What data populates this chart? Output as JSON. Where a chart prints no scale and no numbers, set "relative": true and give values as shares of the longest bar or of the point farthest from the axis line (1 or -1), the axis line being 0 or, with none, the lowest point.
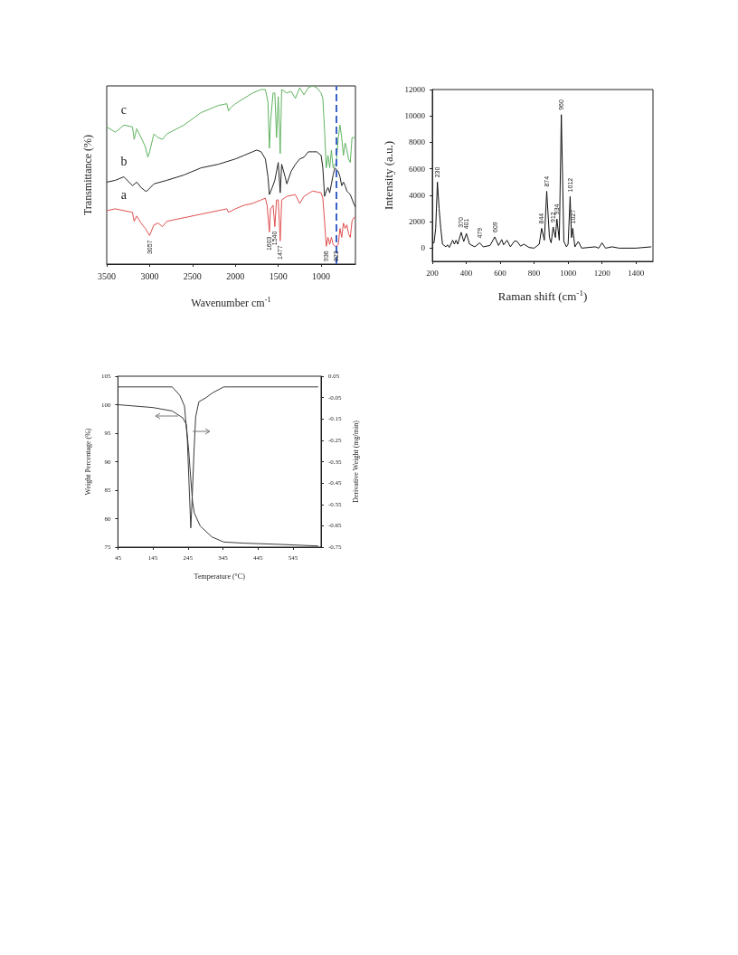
{
  "chart_data": [
    {
      "type": "line",
      "relative": true,
      "xlabel": "Wavenumber cm$^{-1}$",
      "ylabel": "Transmittance (%)",
      "xlim": [
        3500,
        600
      ],
      "xticks": [
        3500,
        3000,
        2500,
        2000,
        1500,
        1000
      ],
      "marker": "none",
      "series": [
        {
          "name": "c",
          "color": "#5fb35f",
          "x": [
            3500,
            3400,
            3300,
            3200,
            3180,
            3150,
            3100,
            3050,
            3020,
            3000,
            2950,
            2900,
            2850,
            2800,
            2600,
            2400,
            2200,
            2100,
            2080,
            2050,
            2000,
            1900,
            1800,
            1700,
            1650,
            1620,
            1603,
            1590,
            1560,
            1540,
            1520,
            1500,
            1477,
            1460,
            1400,
            1350,
            1300,
            1250,
            1200,
            1150,
            1100,
            1050,
            1000,
            980,
            960,
            940,
            920,
            900,
            880,
            860,
            840,
            823,
            800,
            780,
            760,
            740,
            720,
            700,
            680,
            660,
            640,
            620,
            600
          ],
          "values": [
            0.77,
            0.74,
            0.78,
            0.77,
            0.7,
            0.76,
            0.71,
            0.66,
            0.6,
            0.63,
            0.73,
            0.71,
            0.7,
            0.73,
            0.78,
            0.85,
            0.89,
            0.9,
            0.86,
            0.88,
            0.9,
            0.93,
            0.96,
            0.98,
            0.98,
            0.91,
            0.65,
            0.8,
            0.96,
            0.96,
            0.71,
            0.94,
            0.62,
            0.98,
            0.96,
            0.97,
            0.93,
            0.99,
            0.95,
            0.99,
            1.0,
            0.99,
            0.96,
            0.93,
            0.75,
            0.54,
            0.61,
            0.54,
            0.64,
            0.54,
            0.56,
            0.57,
            0.71,
            0.78,
            0.71,
            0.61,
            0.68,
            0.64,
            0.59,
            0.57,
            0.71,
            0.71,
            0.71
          ]
        },
        {
          "name": "b",
          "color": "#222222",
          "x": [
            3500,
            3400,
            3300,
            3200,
            3150,
            3100,
            3050,
            3030,
            2950,
            2800,
            2600,
            2400,
            2200,
            2000,
            1900,
            1800,
            1750,
            1700,
            1650,
            1620,
            1603,
            1570,
            1540,
            1520,
            1500,
            1477,
            1460,
            1420,
            1400,
            1350,
            1300,
            1250,
            1200,
            1150,
            1100,
            1050,
            1000,
            980,
            960,
            940,
            920,
            900,
            880,
            860,
            840,
            823,
            800,
            780,
            760,
            740,
            720,
            700,
            680,
            660,
            620,
            600
          ],
          "values": [
            0.46,
            0.47,
            0.49,
            0.44,
            0.46,
            0.43,
            0.41,
            0.41,
            0.45,
            0.47,
            0.5,
            0.54,
            0.56,
            0.59,
            0.61,
            0.63,
            0.64,
            0.63,
            0.59,
            0.49,
            0.39,
            0.43,
            0.47,
            0.52,
            0.57,
            0.4,
            0.56,
            0.49,
            0.45,
            0.52,
            0.56,
            0.59,
            0.6,
            0.63,
            0.63,
            0.63,
            0.61,
            0.54,
            0.38,
            0.41,
            0.43,
            0.4,
            0.45,
            0.5,
            0.54,
            0.53,
            0.52,
            0.49,
            0.44,
            0.46,
            0.44,
            0.41,
            0.4,
            0.39,
            0.34,
            0.32
          ]
        },
        {
          "name": "a",
          "color": "#e05050",
          "x": [
            3500,
            3400,
            3300,
            3200,
            3180,
            3150,
            3100,
            3050,
            3000,
            2950,
            2900,
            2850,
            2800,
            2600,
            2400,
            2200,
            2100,
            2080,
            2000,
            1900,
            1800,
            1700,
            1650,
            1630,
            1603,
            1590,
            1560,
            1540,
            1520,
            1500,
            1477,
            1460,
            1400,
            1300,
            1250,
            1200,
            1100,
            1000,
            980,
            960,
            940,
            920,
            900,
            880,
            860,
            840,
            823,
            800,
            780,
            760,
            740,
            720,
            700,
            680,
            660,
            640,
            620,
            600
          ],
          "values": [
            0.3,
            0.31,
            0.3,
            0.29,
            0.24,
            0.27,
            0.23,
            0.2,
            0.16,
            0.22,
            0.23,
            0.21,
            0.24,
            0.26,
            0.28,
            0.3,
            0.31,
            0.29,
            0.31,
            0.33,
            0.34,
            0.36,
            0.37,
            0.33,
            0.18,
            0.31,
            0.33,
            0.21,
            0.36,
            0.36,
            0.13,
            0.36,
            0.38,
            0.39,
            0.34,
            0.38,
            0.41,
            0.4,
            0.37,
            0.24,
            0.1,
            0.15,
            0.11,
            0.15,
            0.11,
            0.1,
            0.1,
            0.11,
            0.2,
            0.15,
            0.23,
            0.2,
            0.22,
            0.17,
            0.15,
            0.24,
            0.26,
            0.26
          ]
        }
      ],
      "ref_lines": [
        {
          "axis": "x",
          "value": 823,
          "color": "#3a62c9",
          "line_style": "dashed"
        }
      ],
      "annotations": [
        {
          "text": "3057",
          "x": 3000,
          "y": 0.16
        },
        {
          "text": "1603",
          "x": 1603,
          "y": 0.18
        },
        {
          "text": "1540",
          "x": 1540,
          "y": 0.21
        },
        {
          "text": "1477",
          "x": 1477,
          "y": 0.13
        },
        {
          "text": "936",
          "x": 940,
          "y": 0.1
        },
        {
          "text": "823",
          "x": 823,
          "y": 0.1
        }
      ]
    },
    {
      "type": "line",
      "xlabel": "Raman shift (cm$^{-1}$)",
      "ylabel": "Intensity (a.u.)",
      "xlim": [
        200,
        1500
      ],
      "xticks": [
        200,
        400,
        600,
        800,
        1000,
        1200,
        1400
      ],
      "ylim": [
        -1000,
        12000
      ],
      "yticks": [
        0,
        2000,
        4000,
        6000,
        8000,
        10000,
        12000
      ],
      "marker": "none",
      "series": [
        {
          "color": "#111111",
          "x": [
            200,
            210,
            220,
            230,
            240,
            250,
            260,
            280,
            290,
            300,
            320,
            330,
            340,
            350,
            370,
            385,
            401,
            420,
            450,
            479,
            500,
            540,
            568,
            590,
            609,
            620,
            640,
            660,
            685,
            700,
            720,
            740,
            770,
            800,
            830,
            844,
            860,
            874,
            890,
            900,
            912,
            925,
            934,
            948,
            960,
            975,
            990,
            1000,
            1012,
            1020,
            1027,
            1040,
            1060,
            1080,
            1160,
            1180,
            1200,
            1220,
            1260,
            1300,
            1400,
            1490
          ],
          "values": [
            400,
            400,
            1500,
            5000,
            3000,
            1500,
            300,
            100,
            250,
            50,
            600,
            300,
            600,
            300,
            1200,
            500,
            1100,
            300,
            100,
            400,
            100,
            200,
            850,
            200,
            650,
            250,
            600,
            100,
            550,
            500,
            150,
            300,
            50,
            0,
            300,
            1500,
            600,
            4300,
            800,
            400,
            1600,
            800,
            2200,
            600,
            10100,
            500,
            100,
            300,
            3900,
            800,
            1500,
            100,
            500,
            0,
            100,
            0,
            400,
            0,
            100,
            0,
            0,
            100
          ]
        }
      ],
      "annotations": [
        {
          "text": "230",
          "x": 230,
          "y": 5000
        },
        {
          "text": "370",
          "x": 370,
          "y": 1200
        },
        {
          "text": "401",
          "x": 401,
          "y": 1100
        },
        {
          "text": "479",
          "x": 479,
          "y": 400
        },
        {
          "text": "609",
          "x": 568,
          "y": 850
        },
        {
          "text": "844",
          "x": 844,
          "y": 1500
        },
        {
          "text": "874",
          "x": 874,
          "y": 4300
        },
        {
          "text": "912",
          "x": 912,
          "y": 1600
        },
        {
          "text": "934",
          "x": 934,
          "y": 2200
        },
        {
          "text": "960",
          "x": 960,
          "y": 10100
        },
        {
          "text": "1012",
          "x": 1012,
          "y": 3900
        },
        {
          "text": "1027",
          "x": 1027,
          "y": 1500
        }
      ]
    },
    {
      "type": "line",
      "xlabel": "Temperature (°C)",
      "ylabel": "Weight Percentage (%)",
      "y2label": "Derivative Weight (mg/min)",
      "xlim": [
        45,
        625
      ],
      "xticks": [
        45,
        145,
        245,
        345,
        445,
        545
      ],
      "ylim": [
        75,
        105
      ],
      "yticks": [
        75,
        80,
        85,
        90,
        95,
        100,
        105
      ],
      "y2lim": [
        -0.75,
        0.05
      ],
      "y2ticks": [
        -0.75,
        -0.65,
        -0.55,
        -0.45,
        -0.35,
        -0.25,
        -0.15,
        -0.05,
        0.05
      ],
      "marker": "none",
      "series": [
        {
          "color": "#3a3a3a",
          "x": [
            45,
            145,
            200,
            230,
            240,
            247,
            253,
            258,
            263,
            280,
            313,
            347,
            405,
            500,
            617
          ],
          "values": [
            100,
            99.5,
            98.9,
            97.7,
            96.6,
            92,
            87,
            83,
            81,
            78.7,
            76.8,
            75.9,
            75.7,
            75.5,
            75.2
          ]
        },
        {
          "color": "#3a3a3a",
          "axis": "y2",
          "x": [
            45,
            200,
            222,
            235,
            243,
            248,
            253,
            257,
            262,
            267,
            276,
            297,
            313,
            347,
            617
          ],
          "values": [
            0.0,
            0.0,
            -0.04,
            -0.09,
            -0.24,
            -0.45,
            -0.66,
            -0.52,
            -0.31,
            -0.14,
            -0.07,
            -0.05,
            -0.03,
            0.0,
            0.0
          ]
        }
      ]
    }
  ]
}
